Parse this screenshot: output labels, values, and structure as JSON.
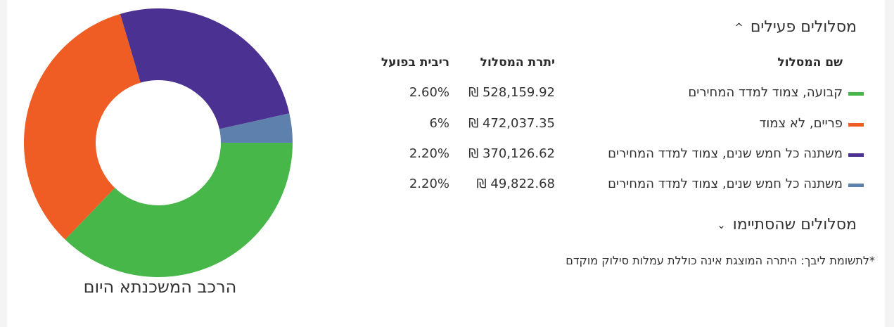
{
  "sections": {
    "active": {
      "title": "מסלולים פעילים",
      "chevron": "^"
    },
    "ended": {
      "title": "מסלולים שהסתיימו",
      "chevron": "⌄"
    }
  },
  "table": {
    "headers": {
      "name": "שם המסלול",
      "balance": "יתרת המסלול",
      "rate": "ריבית בפועל"
    },
    "rows": [
      {
        "name": "קבועה, צמוד למדד המחירים",
        "balance": "528,159.92 ₪",
        "rate": "2.60%",
        "color": "#46b748"
      },
      {
        "name": "פריים, לא צמוד",
        "balance": "472,037.35 ₪",
        "rate": "6%",
        "color": "#ef5d25"
      },
      {
        "name": "משתנה כל חמש שנים, צמוד למדד המחירים",
        "balance": "370,126.62 ₪",
        "rate": "2.20%",
        "color": "#4b3191"
      },
      {
        "name": "משתנה כל חמש שנים, צמוד למדד המחירים",
        "balance": "49,822.68 ₪",
        "rate": "2.20%",
        "color": "#5e80ac"
      }
    ]
  },
  "note": "*לתשומת ליבך: היתרה המוצגת אינה כוללת עמלות סילוק מוקדם",
  "chart_data": {
    "type": "pie",
    "title": "הרכב המשכנתא היום",
    "slices": [
      {
        "name": "קבועה, צמוד למדד המחירים",
        "value": 528159.92,
        "color": "#46b748"
      },
      {
        "name": "פריים, לא צמוד",
        "value": 472037.35,
        "color": "#ef5d25"
      },
      {
        "name": "משתנה כל חמש שנים, צמוד למדד המחירים",
        "value": 370126.62,
        "color": "#4b3191"
      },
      {
        "name": "משתנה כל חמש שנים, צמוד למדד המחירים",
        "value": 49822.68,
        "color": "#5e80ac"
      }
    ]
  }
}
